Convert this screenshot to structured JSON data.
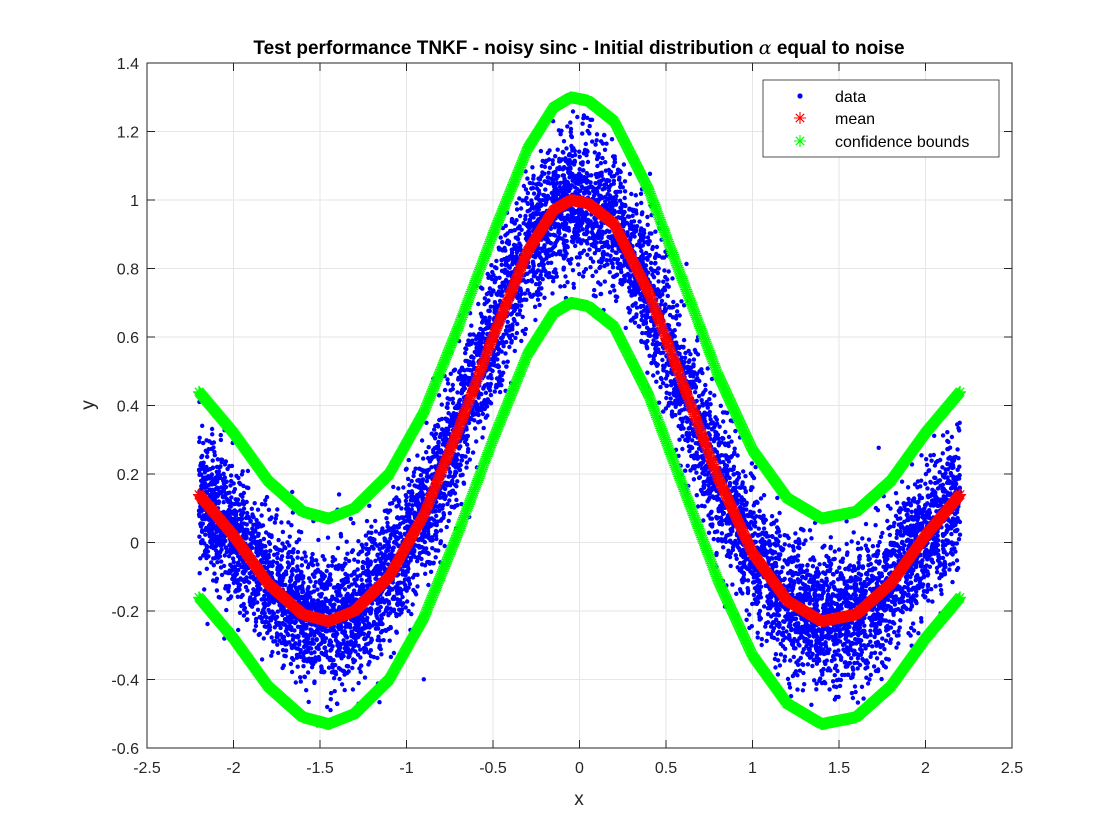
{
  "chart_data": {
    "type": "scatter",
    "title_main": "Test performance TNKF - noisy sinc - Initial distribution",
    "title_symbol": "α",
    "title_end": "equal to noise",
    "xlabel": "x",
    "ylabel": "y",
    "xlim": [
      -2.5,
      2.5
    ],
    "ylim": [
      -0.6,
      1.4
    ],
    "xticks": [
      -2.5,
      -2,
      -1.5,
      -1,
      -0.5,
      0,
      0.5,
      1,
      1.5,
      2,
      2.5
    ],
    "xtick_labels": [
      "-2.5",
      "-2",
      "-1.5",
      "-1",
      "-0.5",
      "0",
      "0.5",
      "1",
      "1.5",
      "2",
      "2.5"
    ],
    "yticks": [
      -0.6,
      -0.4,
      -0.2,
      0,
      0.2,
      0.4,
      0.6,
      0.8,
      1,
      1.2,
      1.4
    ],
    "ytick_labels": [
      "-0.6",
      "-0.4",
      "-0.2",
      "0",
      "0.2",
      "0.4",
      "0.6",
      "0.8",
      "1",
      "1.2",
      "1.4"
    ],
    "grid": true,
    "legend_position": "top-right",
    "x_range": [
      -2.2,
      2.2
    ],
    "series": [
      {
        "name": "data",
        "marker": "dot",
        "color": "#0000ff",
        "description_of_values": "noisy samples around sinc curve",
        "n_points": 9000,
        "noise_sd": 0.1,
        "x": [
          -2.2,
          -1.5,
          -1.4,
          -1.0,
          -0.5,
          0.0,
          0.5,
          1.0,
          1.4,
          1.5,
          2.2
        ],
        "y_center": [
          0.14,
          -0.22,
          -0.23,
          -0.03,
          0.58,
          1.0,
          0.58,
          -0.03,
          -0.23,
          -0.22,
          0.14
        ]
      },
      {
        "name": "mean",
        "marker": "asterisk",
        "color": "#ff0000",
        "x": [
          -2.2,
          -2.0,
          -1.8,
          -1.6,
          -1.45,
          -1.3,
          -1.1,
          -0.9,
          -0.7,
          -0.5,
          -0.3,
          -0.15,
          -0.05,
          0.05,
          0.2,
          0.4,
          0.6,
          0.8,
          1.0,
          1.2,
          1.4,
          1.6,
          1.8,
          2.0,
          2.2
        ],
        "y": [
          0.14,
          0.02,
          -0.12,
          -0.21,
          -0.23,
          -0.2,
          -0.1,
          0.08,
          0.33,
          0.6,
          0.85,
          0.97,
          1.0,
          0.99,
          0.93,
          0.73,
          0.46,
          0.19,
          -0.03,
          -0.17,
          -0.23,
          -0.21,
          -0.12,
          0.02,
          0.14
        ]
      },
      {
        "name": "confidence bounds",
        "marker": "asterisk",
        "color": "#00ff00",
        "offset": 0.3,
        "upper_y": [
          0.44,
          0.32,
          0.18,
          0.09,
          0.07,
          0.1,
          0.2,
          0.38,
          0.63,
          0.9,
          1.15,
          1.27,
          1.3,
          1.29,
          1.23,
          1.03,
          0.76,
          0.49,
          0.27,
          0.13,
          0.07,
          0.09,
          0.18,
          0.32,
          0.44
        ],
        "lower_y": [
          -0.16,
          -0.28,
          -0.42,
          -0.51,
          -0.53,
          -0.5,
          -0.4,
          -0.22,
          0.03,
          0.3,
          0.55,
          0.67,
          0.7,
          0.69,
          0.63,
          0.43,
          0.16,
          -0.11,
          -0.33,
          -0.47,
          -0.53,
          -0.51,
          -0.42,
          -0.28,
          -0.16
        ]
      }
    ]
  }
}
